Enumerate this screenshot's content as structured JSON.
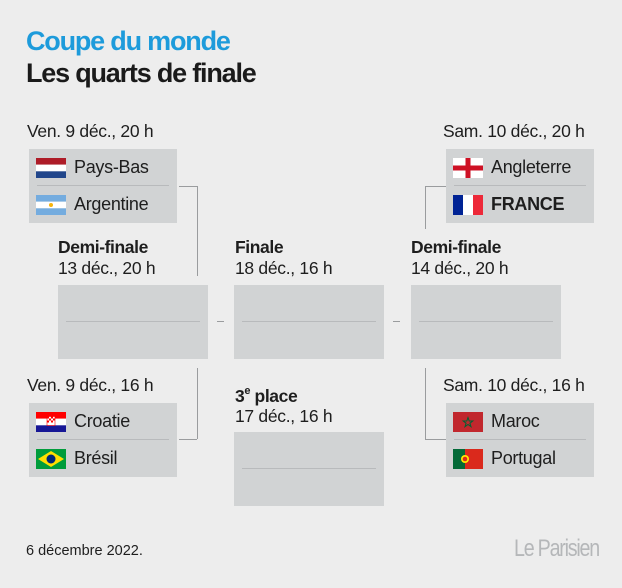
{
  "header": {
    "title": "Coupe du monde",
    "subtitle": "Les quarts de finale"
  },
  "quarters": [
    {
      "date": "Ven. 9 déc., 20 h",
      "teams": [
        {
          "name": "Pays-Bas",
          "flag": "netherlands-flag-icon"
        },
        {
          "name": "Argentine",
          "flag": "argentina-flag-icon"
        }
      ]
    },
    {
      "date": "Sam. 10 déc., 20 h",
      "teams": [
        {
          "name": "Angleterre",
          "flag": "england-flag-icon"
        },
        {
          "name": "FRANCE",
          "flag": "france-flag-icon"
        }
      ]
    },
    {
      "date": "Ven. 9 déc., 16 h",
      "teams": [
        {
          "name": "Croatie",
          "flag": "croatia-flag-icon"
        },
        {
          "name": "Brésil",
          "flag": "brazil-flag-icon"
        }
      ]
    },
    {
      "date": "Sam. 10 déc., 16 h",
      "teams": [
        {
          "name": "Maroc",
          "flag": "morocco-flag-icon"
        },
        {
          "name": "Portugal",
          "flag": "portugal-flag-icon"
        }
      ]
    }
  ],
  "stages": {
    "semi_left": {
      "label": "Demi-finale",
      "date": "13 déc., 20 h"
    },
    "final": {
      "label": "Finale",
      "date": "18 déc., 16 h"
    },
    "semi_right": {
      "label": "Demi-finale",
      "date": "14 déc., 20 h"
    },
    "third_place": {
      "label_num": "3",
      "label_sup": "e",
      "label_rest": " place",
      "date": "17 déc., 16 h"
    }
  },
  "footer": {
    "date": "6 décembre 2022.",
    "logo": "Le Parisien"
  },
  "colors": {
    "accent": "#1d9bdb",
    "box": "#d1d3d4",
    "background": "#ededed"
  }
}
